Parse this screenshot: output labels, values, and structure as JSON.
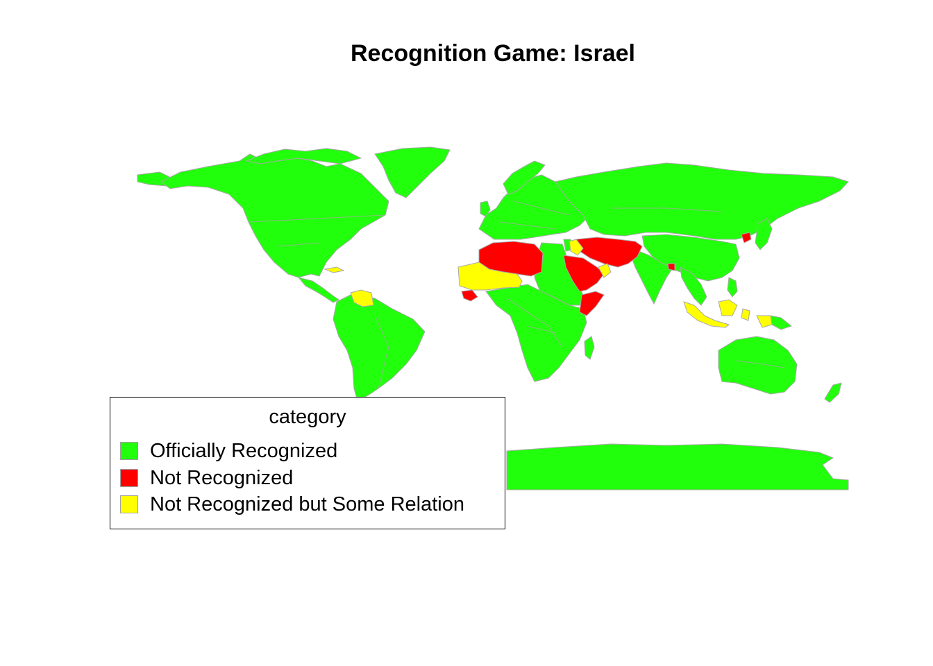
{
  "title": "Recognition Game: Israel",
  "legend": {
    "title": "category",
    "items": [
      {
        "label": "Officially Recognized",
        "color": "#22ff0c"
      },
      {
        "label": "Not Recognized",
        "color": "#ff0000"
      },
      {
        "label": "Not Recognized but Some Relation",
        "color": "#ffff00"
      }
    ]
  },
  "colors": {
    "recognized": "#22ff0c",
    "not_recognized": "#ff0000",
    "some_relation": "#ffff00",
    "border": "#a9a9a9"
  },
  "map_data": {
    "not_recognized": [
      "Algeria",
      "Libya",
      "Tunisia",
      "Syria",
      "Lebanon",
      "Iraq",
      "Iran",
      "Afghanistan",
      "Pakistan",
      "Saudi Arabia",
      "Yemen",
      "Kuwait",
      "Somalia",
      "Bangladesh",
      "North Korea",
      "Guinea"
    ],
    "not_recognized_but_some_relation": [
      "Mali",
      "Niger",
      "Mauritania",
      "Djibouti",
      "Oman",
      "Qatar",
      "Cuba",
      "Venezuela",
      "Indonesia",
      "Brunei",
      "Malaysia"
    ]
  }
}
